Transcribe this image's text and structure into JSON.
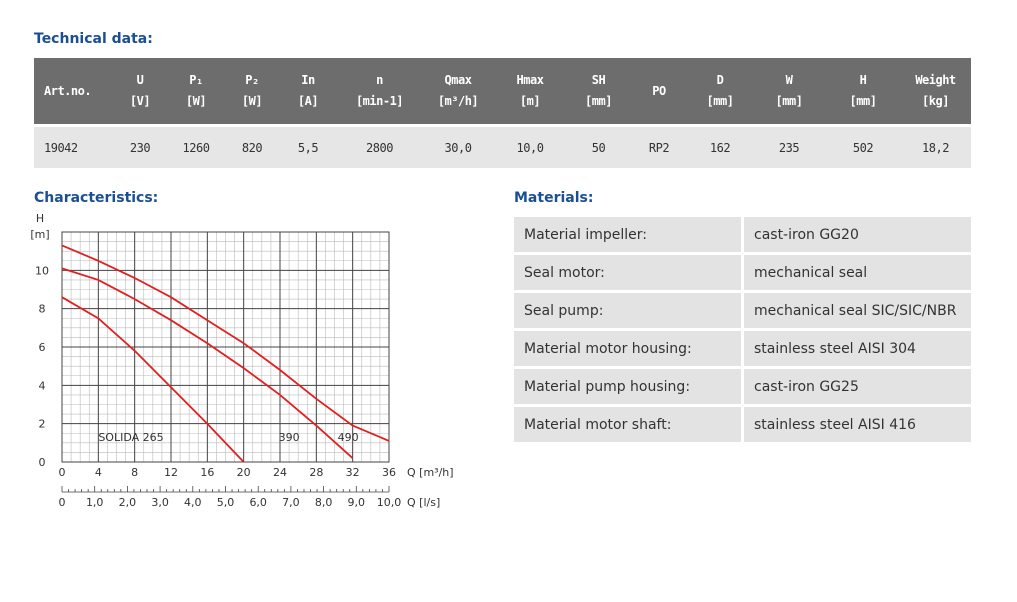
{
  "technical_data": {
    "title": "Technical data:",
    "headers": [
      {
        "line1": "Art.no.",
        "line2": ""
      },
      {
        "line1": "U",
        "line2": "[V]"
      },
      {
        "line1": "P₁",
        "line2": "[W]"
      },
      {
        "line1": "P₂",
        "line2": "[W]"
      },
      {
        "line1": "In",
        "line2": "[A]"
      },
      {
        "line1": "n",
        "line2": "[min-1]"
      },
      {
        "line1": "Qmax",
        "line2": "[m³/h]"
      },
      {
        "line1": "Hmax",
        "line2": "[m]"
      },
      {
        "line1": "SH",
        "line2": "[mm]"
      },
      {
        "line1": "PO",
        "line2": ""
      },
      {
        "line1": "D",
        "line2": "[mm]"
      },
      {
        "line1": "W",
        "line2": "[mm]"
      },
      {
        "line1": "H",
        "line2": "[mm]"
      },
      {
        "line1": "Weight",
        "line2": "[kg]"
      }
    ],
    "row": [
      "19042",
      "230",
      "1260",
      "820",
      "5,5",
      "2800",
      "30,0",
      "10,0",
      "50",
      "RP2",
      "162",
      "235",
      "502",
      "18,2"
    ]
  },
  "characteristics": {
    "title": "Characteristics:"
  },
  "chart_data": {
    "type": "line",
    "ylabel": "H",
    "yunit": "[m]",
    "xlabel": "Q [m³/h]",
    "x2label": "Q [l/s]",
    "ylim": [
      0,
      12
    ],
    "xlim": [
      0,
      36
    ],
    "yticks": [
      "0",
      "2",
      "4",
      "6",
      "8",
      "10"
    ],
    "xticks": [
      "0",
      "4",
      "8",
      "12",
      "16",
      "20",
      "24",
      "28",
      "32",
      "36"
    ],
    "x2ticks": [
      "0",
      "1,0",
      "2,0",
      "3,0",
      "4,0",
      "5,0",
      "6,0",
      "7,0",
      "8,0",
      "9,0",
      "10,0"
    ],
    "grid": true,
    "series_color": "#e02020",
    "series": [
      {
        "name": "SOLIDA 265",
        "x": [
          0,
          4,
          8,
          12,
          16,
          20
        ],
        "y": [
          8.6,
          7.5,
          5.8,
          3.9,
          2.0,
          0.0
        ]
      },
      {
        "name": "390",
        "x": [
          0,
          4,
          8,
          12,
          16,
          20,
          24,
          28,
          32
        ],
        "y": [
          10.1,
          9.5,
          8.5,
          7.4,
          6.2,
          4.9,
          3.5,
          1.9,
          0.2
        ]
      },
      {
        "name": "490",
        "x": [
          0,
          4,
          8,
          12,
          16,
          20,
          24,
          28,
          32,
          36
        ],
        "y": [
          11.3,
          10.5,
          9.6,
          8.6,
          7.4,
          6.2,
          4.8,
          3.3,
          1.9,
          1.1
        ]
      }
    ]
  },
  "materials": {
    "title": "Materials:",
    "rows": [
      {
        "key": "Material impeller:",
        "value": "cast-iron GG20"
      },
      {
        "key": "Seal motor:",
        "value": "mechanical seal"
      },
      {
        "key": "Seal pump:",
        "value": "mechanical seal SIC/SIC/NBR"
      },
      {
        "key": "Material motor housing:",
        "value": "stainless steel AISI 304"
      },
      {
        "key": "Material pump housing:",
        "value": "cast-iron GG25"
      },
      {
        "key": "Material motor shaft:",
        "value": "stainless steel AISI 416"
      }
    ]
  }
}
